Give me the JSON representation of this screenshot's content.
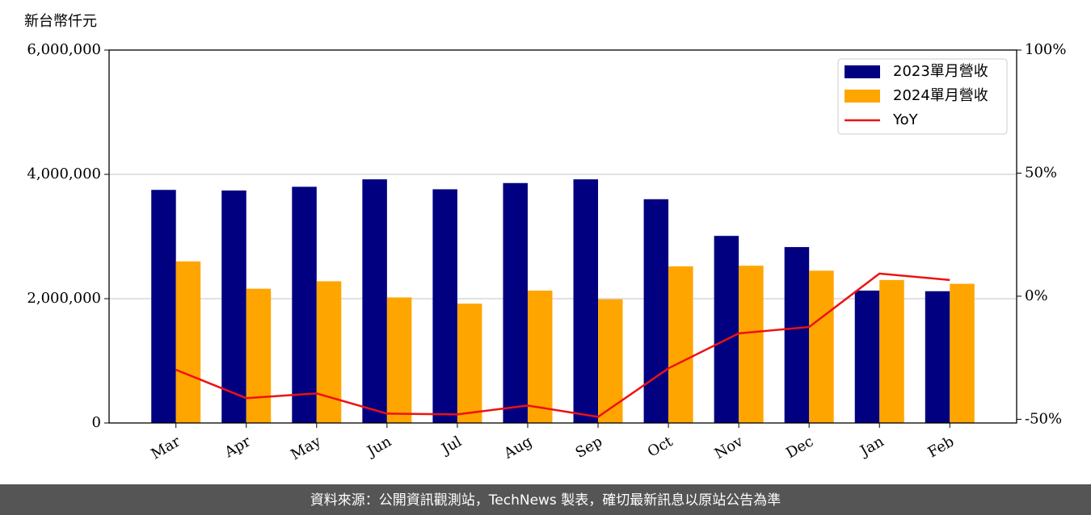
{
  "chart_data": {
    "type": "bar",
    "unit_label": "新台幣仟元",
    "categories": [
      "Mar",
      "Apr",
      "May",
      "Jun",
      "Jul",
      "Aug",
      "Sep",
      "Oct",
      "Nov",
      "Dec",
      "Jan",
      "Feb"
    ],
    "series": [
      {
        "name": "2023單月營收",
        "color": "#000080",
        "values": [
          3750000,
          3740000,
          3800000,
          3920000,
          3760000,
          3860000,
          3920000,
          3600000,
          3010000,
          2830000,
          2130000,
          2120000
        ]
      },
      {
        "name": "2024單月營收",
        "color": "#ffa500",
        "values": [
          2600000,
          2160000,
          2280000,
          2020000,
          1920000,
          2130000,
          1990000,
          2520000,
          2530000,
          2450000,
          2300000,
          2240000
        ]
      },
      {
        "name": "YoY",
        "color": "#ee1111",
        "type": "line",
        "axis": "y2",
        "values": [
          -29.9,
          -41.4,
          -39.5,
          -47.7,
          -48.0,
          -44.4,
          -49.0,
          -29.3,
          -15.1,
          -12.5,
          9.2,
          6.6
        ]
      }
    ],
    "ylim": [
      0,
      6000000
    ],
    "yticks": [
      {
        "value": 0,
        "label": "0"
      },
      {
        "value": 2000000,
        "label": "2,000,000"
      },
      {
        "value": 4000000,
        "label": "4,000,000"
      },
      {
        "value": 6000000,
        "label": "6,000,000"
      }
    ],
    "y2lim": [
      -51.5,
      100
    ],
    "y2ticks": [
      {
        "value": -50,
        "label": "-50%"
      },
      {
        "value": 0,
        "label": "0%"
      },
      {
        "value": 50,
        "label": "50%"
      },
      {
        "value": 100,
        "label": "100%"
      }
    ],
    "grid": true,
    "legend": "upper right",
    "source": "資料來源：公開資訊觀測站，TechNews 製表，確切最新訊息以原站公告為準"
  }
}
